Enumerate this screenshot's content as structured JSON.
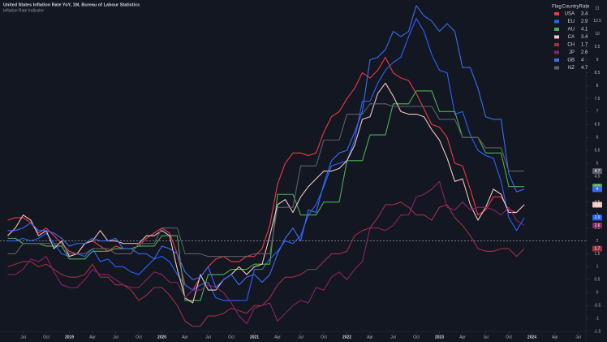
{
  "chart_data": {
    "type": "line",
    "title": "United States Inflation Rate YoY, 1M, Bureau of Labour Statistics",
    "subtitle": "Inflation Rate Indicator",
    "legend_header": [
      "Flag",
      "Country",
      "Rate"
    ],
    "x": [
      "2018-05",
      "2018-06",
      "2018-07",
      "2018-08",
      "2018-09",
      "2018-10",
      "2018-11",
      "2018-12",
      "2019-01",
      "2019-02",
      "2019-03",
      "2019-04",
      "2019-05",
      "2019-06",
      "2019-07",
      "2019-08",
      "2019-09",
      "2019-10",
      "2019-11",
      "2019-12",
      "2020-01",
      "2020-02",
      "2020-03",
      "2020-04",
      "2020-05",
      "2020-06",
      "2020-07",
      "2020-08",
      "2020-09",
      "2020-10",
      "2020-11",
      "2020-12",
      "2021-01",
      "2021-02",
      "2021-03",
      "2021-04",
      "2021-05",
      "2021-06",
      "2021-07",
      "2021-08",
      "2021-09",
      "2021-10",
      "2021-11",
      "2021-12",
      "2022-01",
      "2022-02",
      "2022-03",
      "2022-04",
      "2022-05",
      "2022-06",
      "2022-07",
      "2022-08",
      "2022-09",
      "2022-10",
      "2022-11",
      "2022-12",
      "2023-01",
      "2023-02",
      "2023-03",
      "2023-04",
      "2023-05",
      "2023-06",
      "2023-07",
      "2023-08",
      "2023-09",
      "2023-10",
      "2023-11",
      "2023-12"
    ],
    "series": [
      {
        "name": "USA",
        "color": "#f23645",
        "values": [
          2.8,
          2.9,
          2.9,
          2.7,
          2.3,
          2.5,
          2.2,
          1.9,
          1.6,
          1.5,
          1.9,
          2.0,
          1.8,
          1.6,
          1.8,
          1.7,
          1.7,
          1.8,
          2.1,
          2.3,
          2.5,
          2.3,
          1.5,
          0.3,
          0.1,
          0.6,
          1.0,
          1.3,
          1.4,
          1.2,
          1.2,
          1.4,
          1.4,
          1.7,
          2.6,
          4.2,
          5.0,
          5.4,
          5.4,
          5.3,
          5.4,
          6.2,
          6.8,
          7.0,
          7.5,
          7.9,
          8.5,
          8.3,
          8.6,
          9.1,
          8.5,
          8.3,
          8.2,
          7.7,
          7.1,
          6.5,
          6.4,
          6.0,
          5.0,
          4.9,
          4.0,
          3.0,
          3.2,
          3.7,
          3.7,
          3.2,
          3.1,
          3.4
        ]
      },
      {
        "name": "EU",
        "color": "#2962ff",
        "values": [
          2.0,
          2.0,
          2.1,
          2.0,
          2.1,
          2.3,
          1.9,
          1.5,
          1.4,
          1.5,
          1.4,
          1.7,
          1.2,
          1.3,
          1.0,
          1.0,
          0.8,
          0.7,
          1.0,
          1.3,
          1.4,
          1.2,
          0.7,
          0.3,
          0.1,
          0.3,
          0.4,
          -0.2,
          -0.3,
          -0.3,
          -0.3,
          -0.3,
          0.9,
          0.9,
          1.3,
          1.6,
          2.0,
          1.9,
          2.2,
          3.0,
          3.4,
          4.1,
          4.9,
          5.0,
          5.1,
          5.9,
          7.4,
          7.4,
          8.1,
          8.6,
          8.9,
          9.1,
          9.9,
          10.6,
          10.1,
          9.2,
          8.6,
          8.5,
          6.9,
          7.0,
          6.1,
          5.5,
          5.3,
          5.2,
          4.3,
          2.9,
          2.4,
          2.9
        ]
      },
      {
        "name": "AU",
        "color": "#4caf50",
        "values": [
          2.1,
          2.1,
          1.9,
          1.9,
          1.9,
          1.8,
          1.8,
          1.8,
          1.3,
          1.3,
          1.3,
          1.6,
          1.6,
          1.6,
          1.7,
          1.7,
          1.7,
          1.8,
          1.8,
          1.8,
          2.2,
          2.2,
          2.2,
          -0.3,
          -0.3,
          -0.3,
          0.7,
          0.7,
          0.7,
          0.9,
          0.9,
          0.9,
          1.1,
          1.1,
          1.1,
          3.8,
          3.8,
          3.8,
          3.0,
          3.0,
          3.0,
          3.5,
          3.5,
          3.5,
          5.1,
          5.1,
          5.1,
          6.1,
          6.1,
          6.1,
          7.3,
          7.3,
          7.3,
          7.8,
          7.8,
          7.8,
          7.0,
          7.0,
          7.0,
          6.0,
          6.0,
          6.0,
          5.4,
          5.4,
          5.4,
          4.1,
          4.1,
          4.1
        ]
      },
      {
        "name": "CA",
        "color": "#f5c4bd",
        "values": [
          2.2,
          2.5,
          3.0,
          2.8,
          2.2,
          2.4,
          1.7,
          2.0,
          1.4,
          1.5,
          1.9,
          2.0,
          2.4,
          2.0,
          2.0,
          1.9,
          1.9,
          1.9,
          2.2,
          2.2,
          2.4,
          2.2,
          0.9,
          -0.2,
          -0.4,
          0.7,
          0.1,
          0.1,
          0.5,
          0.7,
          1.0,
          0.7,
          1.0,
          1.1,
          2.2,
          3.4,
          3.6,
          3.1,
          3.7,
          4.1,
          4.4,
          4.7,
          4.7,
          4.8,
          5.1,
          5.7,
          6.7,
          6.8,
          7.7,
          8.1,
          7.6,
          7.0,
          6.9,
          6.9,
          6.8,
          6.3,
          5.9,
          5.2,
          4.3,
          4.4,
          3.4,
          2.8,
          3.3,
          4.0,
          3.8,
          3.1,
          3.1,
          3.4
        ]
      },
      {
        "name": "CH",
        "color": "#a0303e",
        "values": [
          1.0,
          1.1,
          1.2,
          1.2,
          1.0,
          1.1,
          0.9,
          0.7,
          0.6,
          0.6,
          0.7,
          1.1,
          0.6,
          0.6,
          0.3,
          0.3,
          0.1,
          -0.3,
          -0.1,
          0.2,
          0.2,
          -0.1,
          -0.5,
          -1.1,
          -1.3,
          -1.3,
          -0.9,
          -0.9,
          -0.8,
          -0.6,
          -0.7,
          -0.8,
          -0.5,
          -0.5,
          -0.2,
          0.3,
          0.6,
          0.6,
          0.7,
          0.9,
          0.9,
          1.2,
          1.5,
          1.5,
          1.6,
          2.2,
          2.4,
          2.5,
          2.9,
          3.4,
          3.4,
          3.5,
          3.3,
          3.0,
          3.0,
          2.8,
          3.3,
          3.4,
          2.9,
          2.6,
          2.2,
          1.7,
          1.6,
          1.6,
          1.7,
          1.7,
          1.4,
          1.7
        ]
      },
      {
        "name": "JP",
        "color": "#8a2463",
        "values": [
          0.7,
          0.7,
          0.9,
          1.3,
          1.2,
          1.4,
          0.8,
          0.3,
          0.2,
          0.2,
          0.5,
          0.9,
          0.7,
          0.7,
          0.5,
          0.3,
          0.2,
          0.2,
          0.5,
          0.8,
          0.7,
          0.4,
          0.4,
          -0.2,
          0.1,
          0.1,
          0.3,
          0.2,
          0.0,
          -0.4,
          -0.9,
          -1.2,
          -0.6,
          -0.5,
          -0.4,
          -1.1,
          -0.8,
          -0.5,
          -0.3,
          -0.4,
          0.2,
          0.1,
          0.6,
          0.8,
          0.5,
          0.9,
          1.2,
          2.5,
          2.5,
          2.4,
          2.6,
          3.0,
          3.0,
          3.7,
          3.8,
          4.0,
          4.3,
          3.3,
          3.2,
          3.5,
          3.2,
          3.3,
          3.3,
          3.2,
          3.0,
          3.3,
          2.8,
          2.6
        ]
      },
      {
        "name": "GB",
        "color": "#3a6df0",
        "values": [
          2.4,
          2.4,
          2.5,
          2.7,
          2.4,
          2.4,
          2.3,
          2.1,
          1.8,
          1.9,
          1.9,
          2.1,
          2.0,
          2.0,
          2.1,
          1.7,
          1.7,
          1.5,
          1.5,
          1.3,
          1.8,
          1.7,
          1.5,
          0.8,
          0.5,
          0.6,
          1.0,
          0.2,
          0.5,
          0.7,
          0.3,
          0.6,
          0.7,
          0.4,
          0.7,
          1.5,
          2.1,
          2.5,
          2.0,
          3.2,
          3.1,
          4.2,
          5.1,
          5.4,
          5.5,
          6.2,
          7.0,
          9.0,
          9.1,
          9.4,
          10.1,
          9.9,
          10.1,
          11.1,
          10.7,
          10.5,
          10.1,
          10.4,
          10.1,
          8.7,
          8.7,
          7.9,
          6.8,
          6.7,
          6.7,
          4.6,
          3.9,
          4.0
        ]
      },
      {
        "name": "NZ",
        "color": "#5d606b",
        "values": [
          1.5,
          1.5,
          1.9,
          1.9,
          1.9,
          1.9,
          1.9,
          1.9,
          1.5,
          1.5,
          1.5,
          1.7,
          1.7,
          1.7,
          1.5,
          1.5,
          1.5,
          1.9,
          1.9,
          1.9,
          2.5,
          2.5,
          2.5,
          1.5,
          1.5,
          1.5,
          1.4,
          1.4,
          1.4,
          1.4,
          1.4,
          1.4,
          1.5,
          1.5,
          1.5,
          3.3,
          3.3,
          3.3,
          4.9,
          4.9,
          4.9,
          5.9,
          5.9,
          5.9,
          6.9,
          6.9,
          6.9,
          7.3,
          7.3,
          7.3,
          7.2,
          7.2,
          7.2,
          7.2,
          7.2,
          7.2,
          6.7,
          6.7,
          6.7,
          6.0,
          6.0,
          6.0,
          5.6,
          5.6,
          5.6,
          4.7,
          4.7,
          4.7
        ]
      }
    ],
    "ylim": [
      -1.5,
      11
    ],
    "yticks": [
      11,
      10.5,
      10,
      9.5,
      9,
      8.5,
      8,
      7.5,
      7,
      6.5,
      6,
      5.5,
      5,
      4.5,
      4,
      3.5,
      3,
      2.5,
      2,
      1.5,
      1,
      0.5,
      0,
      -0.5,
      -1,
      -1.5
    ],
    "xlim": [
      "2018-04",
      "2024-08"
    ],
    "xticks": [
      {
        "value": "2018-07",
        "label": "Jul"
      },
      {
        "value": "2018-10",
        "label": "Oct"
      },
      {
        "value": "2019-01",
        "label": "2019"
      },
      {
        "value": "2019-04",
        "label": "Apr"
      },
      {
        "value": "2019-07",
        "label": "Jul"
      },
      {
        "value": "2019-10",
        "label": "Oct"
      },
      {
        "value": "2020-01",
        "label": "2020"
      },
      {
        "value": "2020-04",
        "label": "Apr"
      },
      {
        "value": "2020-07",
        "label": "Jul"
      },
      {
        "value": "2020-10",
        "label": "Oct"
      },
      {
        "value": "2021-01",
        "label": "2021"
      },
      {
        "value": "2021-04",
        "label": "Apr"
      },
      {
        "value": "2021-07",
        "label": "Jul"
      },
      {
        "value": "2021-10",
        "label": "Oct"
      },
      {
        "value": "2022-01",
        "label": "2022"
      },
      {
        "value": "2022-04",
        "label": "Apr"
      },
      {
        "value": "2022-07",
        "label": "Jul"
      },
      {
        "value": "2022-10",
        "label": "Oct"
      },
      {
        "value": "2023-01",
        "label": "2023"
      },
      {
        "value": "2023-04",
        "label": "Apr"
      },
      {
        "value": "2023-07",
        "label": "Jul"
      },
      {
        "value": "2023-10",
        "label": "Oct"
      },
      {
        "value": "2024-01",
        "label": "2024"
      },
      {
        "value": "2024-04",
        "label": "Apr"
      },
      {
        "value": "2024-07",
        "label": "Jul"
      }
    ],
    "reference_line": 2,
    "grid": false
  }
}
